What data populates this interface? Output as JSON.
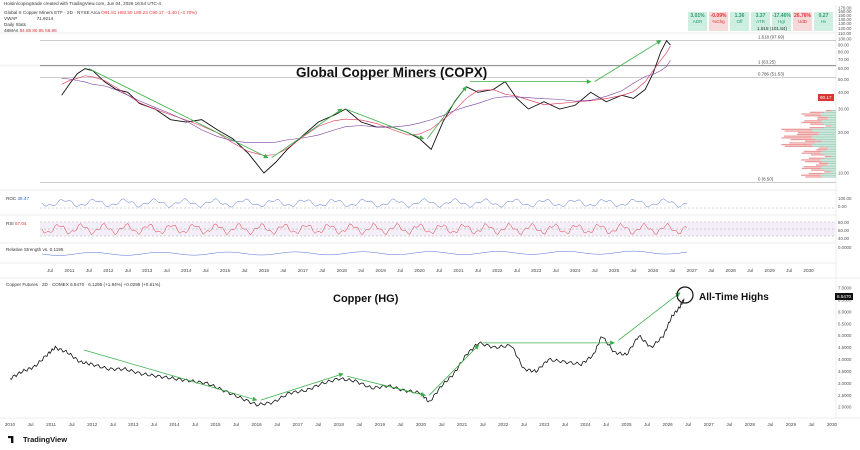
{
  "header": {
    "credit": "Hoisin/copingtrade created with TradingView.com, Jun 04, 2026 16:54 UTC-4",
    "symbol_line": "Global X Copper Miners ETF · 2D · NYSE Arca",
    "ohlc": "O91.81 H93.50 L89.23 C90.17 −3.40 (−3.70%)",
    "vwap": "VWAP",
    "vwap_value": "71.9214",
    "daily_stats": "Daily Stats",
    "mas": "48MAs",
    "mas_values": "84.85 80.85 56.98"
  },
  "stats": [
    {
      "value": "3.01%",
      "label": "ADR",
      "color": "#2a9d6f",
      "bg": "#cdeee0"
    },
    {
      "value": "-0.09%",
      "label": "%Chg",
      "color": "#d33",
      "bg": "#f6d9d9"
    },
    {
      "value": "1.36",
      "label": "Off",
      "color": "#2a9d6f",
      "bg": "#cdeee0"
    },
    {
      "value": "3.37",
      "label": "ATR",
      "color": "#2a9d6f",
      "bg": "#cdeee0"
    },
    {
      "value": "-17.46%",
      "label": "Hgt",
      "color": "#2a9d6f",
      "bg": "#cdeee0"
    },
    {
      "value": "26.76%",
      "label": "UdD",
      "color": "#d33",
      "bg": "#f6d9d9"
    },
    {
      "value": "0.27",
      "label": "Hv",
      "color": "#2a9d6f",
      "bg": "#cdeee0"
    }
  ],
  "stats_note": "1.618 (101.84)",
  "top_title": "Global Copper Miners (COPX)",
  "bottom_title": "Copper (HG)",
  "ath_label": "All-Time Highs",
  "fib": [
    {
      "label": "1.618 (97.69)",
      "value": 97.69
    },
    {
      "label": "1 (63.25)",
      "value": 63.25
    },
    {
      "label": "0.786 (51.53)",
      "value": 51.53
    },
    {
      "label": "0 (8.50)",
      "value": 8.5
    }
  ],
  "roc_label": "ROC",
  "roc_value": "38.47",
  "rsi_label": "RSI",
  "rsi_value": "57.04",
  "rs_label": "Relative Strength vs. 0.1195",
  "copper_header": "Copper Futures · 2D · COMEX 6.5470 · 6.1295 (+1.94%) +0.0295 (+0.61%)",
  "copx_price_tag": "90.17",
  "copper_price_tag": "6.5470",
  "brand": "TradingView",
  "x_labels": [
    "Jul",
    "2011",
    "Jul",
    "2012",
    "Jul",
    "2013",
    "Jul",
    "2014",
    "Jul",
    "2015",
    "Jul",
    "2016",
    "Jul",
    "2017",
    "Jul",
    "2018",
    "Jul",
    "2019",
    "Jul",
    "2020",
    "Jul",
    "2021",
    "Jul",
    "2022",
    "Jul",
    "2023",
    "Jul",
    "2024",
    "Jul",
    "2025",
    "Jul",
    "2026",
    "Jul",
    "2027",
    "Jul",
    "2028",
    "Jul",
    "2029",
    "Jul",
    "2030"
  ],
  "x_labels_bottom": [
    "2010",
    "Jul",
    "2011",
    "Jul",
    "2012",
    "Jul",
    "2013",
    "Jul",
    "2014",
    "Jul",
    "2015",
    "Jul",
    "2016",
    "Jul",
    "2017",
    "Jul",
    "2018",
    "Jul",
    "2019",
    "Jul",
    "2020",
    "Jul",
    "2021",
    "Jul",
    "2022",
    "Jul",
    "2023",
    "Jul",
    "2024",
    "Jul",
    "2025",
    "Jul",
    "2026",
    "Jul",
    "2027",
    "Jul",
    "2028",
    "Jul",
    "2029",
    "Jul",
    "2030"
  ],
  "chart_data": [
    {
      "type": "line",
      "title": "Global Copper Miners (COPX)",
      "y_ticks": [
        "170.00",
        "160.00",
        "150.00",
        "140.00",
        "130.00",
        "120.00",
        "110.00",
        "100.00",
        "90.00",
        "80.00",
        "70.00",
        "60.00",
        "50.00",
        "40.00",
        "30.00",
        "20.00",
        "10.00"
      ],
      "y_scale": "log",
      "ylim": [
        8,
        170
      ],
      "x": [
        2010.8,
        2011.0,
        2011.2,
        2011.4,
        2011.6,
        2011.9,
        2012.2,
        2012.5,
        2012.8,
        2013.2,
        2013.6,
        2014.0,
        2014.4,
        2014.8,
        2015.2,
        2015.6,
        2016.0,
        2016.3,
        2016.6,
        2017.0,
        2017.4,
        2017.8,
        2018.1,
        2018.5,
        2018.9,
        2019.3,
        2019.7,
        2020.0,
        2020.3,
        2020.6,
        2020.9,
        2021.2,
        2021.5,
        2021.9,
        2022.2,
        2022.5,
        2022.8,
        2023.2,
        2023.6,
        2024.0,
        2024.4,
        2024.8,
        2025.2,
        2025.5,
        2025.8,
        2026.0,
        2026.2,
        2026.35,
        2026.45
      ],
      "y": [
        38,
        46,
        55,
        60,
        58,
        48,
        42,
        40,
        33,
        30,
        25,
        24,
        25,
        21,
        18,
        14,
        10,
        12,
        15,
        19,
        24,
        27,
        30,
        24,
        22,
        22,
        20,
        18,
        15,
        24,
        34,
        44,
        40,
        42,
        48,
        36,
        30,
        34,
        30,
        32,
        40,
        34,
        38,
        36,
        42,
        55,
        80,
        97,
        90
      ],
      "trend_arrows": [
        {
          "from": [
            2011.5,
            60
          ],
          "to": [
            2016.1,
            13
          ]
        },
        {
          "from": [
            2016.2,
            13
          ],
          "to": [
            2018.0,
            30
          ]
        },
        {
          "from": [
            2018.1,
            30
          ],
          "to": [
            2020.1,
            18
          ]
        },
        {
          "from": [
            2020.2,
            18
          ],
          "to": [
            2021.2,
            44
          ]
        },
        {
          "from": [
            2021.3,
            48
          ],
          "to": [
            2024.4,
            48
          ]
        },
        {
          "from": [
            2024.5,
            48
          ],
          "to": [
            2026.2,
            97
          ]
        }
      ]
    },
    {
      "type": "line",
      "title": "Copper (HG)",
      "y_ticks": [
        "7.0000",
        "6.5000",
        "6.0000",
        "5.5000",
        "5.0000",
        "4.5000",
        "4.0000",
        "3.5000",
        "3.0000",
        "2.5000",
        "2.0000"
      ],
      "ylim": [
        1.8,
        7.0
      ],
      "x": [
        2010.0,
        2010.3,
        2010.6,
        2010.9,
        2011.1,
        2011.4,
        2011.7,
        2012.0,
        2012.4,
        2012.8,
        2013.2,
        2013.6,
        2014.0,
        2014.4,
        2014.8,
        2015.2,
        2015.6,
        2016.0,
        2016.4,
        2016.8,
        2017.2,
        2017.6,
        2018.0,
        2018.4,
        2018.8,
        2019.2,
        2019.6,
        2020.0,
        2020.2,
        2020.5,
        2020.8,
        2021.1,
        2021.4,
        2021.8,
        2022.2,
        2022.5,
        2022.8,
        2023.1,
        2023.5,
        2023.9,
        2024.2,
        2024.4,
        2024.7,
        2025.0,
        2025.3,
        2025.6,
        2025.9,
        2026.1,
        2026.3,
        2026.4
      ],
      "y": [
        3.2,
        3.5,
        3.7,
        4.2,
        4.5,
        4.3,
        3.9,
        3.8,
        3.6,
        3.6,
        3.4,
        3.3,
        3.2,
        3.1,
        3.0,
        2.7,
        2.4,
        2.1,
        2.2,
        2.6,
        2.7,
        3.0,
        3.2,
        3.1,
        2.8,
        2.9,
        2.7,
        2.6,
        2.2,
        2.9,
        3.4,
        4.2,
        4.7,
        4.5,
        4.6,
        3.6,
        3.5,
        4.0,
        3.9,
        3.8,
        4.2,
        5.0,
        4.3,
        4.2,
        5.0,
        4.5,
        5.0,
        5.8,
        6.2,
        6.55
      ],
      "trend_arrows": [
        {
          "from": [
            2011.8,
            4.4
          ],
          "to": [
            2016.0,
            2.3
          ]
        },
        {
          "from": [
            2016.1,
            2.3
          ],
          "to": [
            2018.1,
            3.4
          ]
        },
        {
          "from": [
            2018.2,
            3.3
          ],
          "to": [
            2020.1,
            2.5
          ]
        },
        {
          "from": [
            2020.2,
            2.5
          ],
          "to": [
            2021.4,
            4.6
          ]
        },
        {
          "from": [
            2021.5,
            4.7
          ],
          "to": [
            2024.7,
            4.7
          ]
        },
        {
          "from": [
            2024.8,
            4.8
          ],
          "to": [
            2026.3,
            6.8
          ]
        }
      ]
    }
  ]
}
